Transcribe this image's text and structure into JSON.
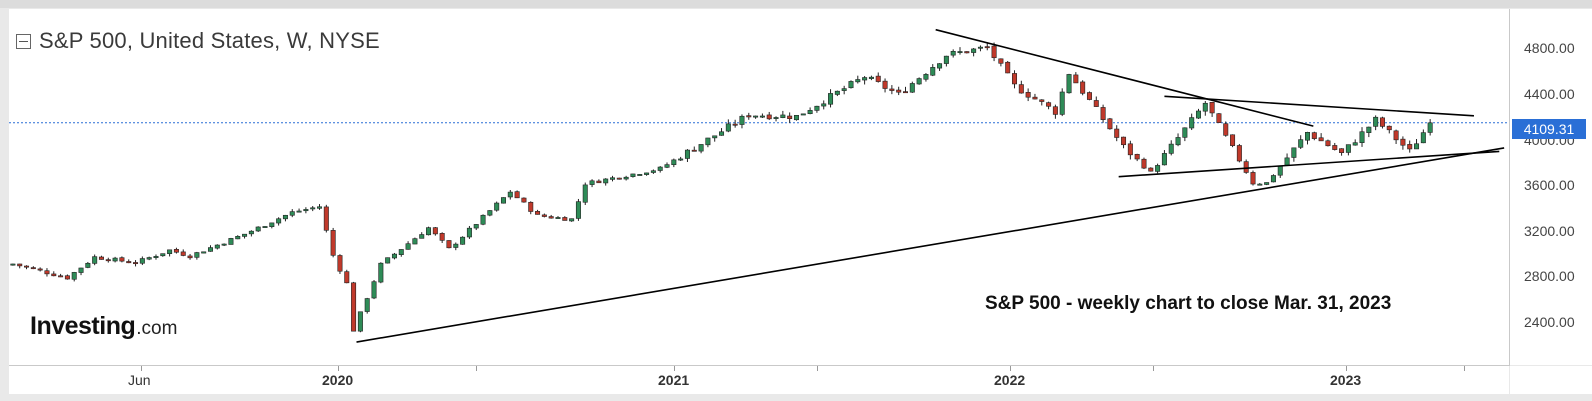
{
  "header": {
    "title": "S&P 500, United States, W, NYSE"
  },
  "annotation": "S&P 500 - weekly chart to close Mar. 31, 2023",
  "brand": {
    "name": "Investing",
    "suffix": ".com"
  },
  "price_axis": {
    "labels": [
      "4800.00",
      "4400.00",
      "4000.00",
      "3600.00",
      "3200.00",
      "2800.00",
      "2400.00"
    ],
    "current_price": "4109.31"
  },
  "time_axis": {
    "labels": [
      {
        "text": "Jun",
        "bold": false
      },
      {
        "text": "2020",
        "bold": true
      },
      {
        "text": "2021",
        "bold": true
      },
      {
        "text": "2022",
        "bold": true
      },
      {
        "text": "2023",
        "bold": true
      }
    ]
  },
  "colors": {
    "up": "#2e8b57",
    "down": "#c0392b",
    "price_line": "#2a6fd6",
    "trendline": "#000000"
  },
  "chart_data": {
    "type": "candlestick",
    "title": "S&P 500, United States, W, NYSE",
    "interval": "weekly",
    "y_range": [
      2000,
      5100
    ],
    "y_ticks": [
      2400,
      2800,
      3200,
      3600,
      4000,
      4400,
      4800
    ],
    "x_range": [
      "2019-04-01",
      "2023-06-20"
    ],
    "last_close": 4109.31,
    "anchors": [
      [
        "2019-04-05",
        2880
      ],
      [
        "2019-05-31",
        2760
      ],
      [
        "2019-06-28",
        2940
      ],
      [
        "2019-08-09",
        2890
      ],
      [
        "2019-09-13",
        3000
      ],
      [
        "2019-10-04",
        2950
      ],
      [
        "2019-11-29",
        3140
      ],
      [
        "2020-01-17",
        3330
      ],
      [
        "2020-02-14",
        3380
      ],
      [
        "2020-02-28",
        2955
      ],
      [
        "2020-03-13",
        2710
      ],
      [
        "2020-03-20",
        2305
      ],
      [
        "2020-04-17",
        2875
      ],
      [
        "2020-06-05",
        3195
      ],
      [
        "2020-06-26",
        3010
      ],
      [
        "2020-08-28",
        3510
      ],
      [
        "2020-09-25",
        3300
      ],
      [
        "2020-10-30",
        3270
      ],
      [
        "2020-11-13",
        3580
      ],
      [
        "2021-01-29",
        3710
      ],
      [
        "2021-04-30",
        4180
      ],
      [
        "2021-06-18",
        4165
      ],
      [
        "2021-08-27",
        4510
      ],
      [
        "2021-10-01",
        4355
      ],
      [
        "2021-11-19",
        4700
      ],
      [
        "2021-12-31",
        4766
      ],
      [
        "2022-01-28",
        4430
      ],
      [
        "2022-03-11",
        4205
      ],
      [
        "2022-03-25",
        4543
      ],
      [
        "2022-05-20",
        3900
      ],
      [
        "2022-06-17",
        3675
      ],
      [
        "2022-08-12",
        4280
      ],
      [
        "2022-09-30",
        3585
      ],
      [
        "2022-10-14",
        3585
      ],
      [
        "2022-11-25",
        4025
      ],
      [
        "2022-12-30",
        3840
      ],
      [
        "2023-02-03",
        4135
      ],
      [
        "2023-03-10",
        3860
      ],
      [
        "2023-03-31",
        4109
      ]
    ],
    "trendlines": [
      {
        "from": [
          "2020-03-23",
          2200
        ],
        "to": [
          "2023-06-15",
          3890
        ]
      },
      {
        "from": [
          "2021-11-08",
          4920
        ],
        "to": [
          "2022-12-01",
          4080
        ]
      },
      {
        "from": [
          "2022-07-01",
          4340
        ],
        "to": [
          "2023-05-15",
          4170
        ]
      },
      {
        "from": [
          "2022-05-15",
          3640
        ],
        "to": [
          "2023-06-10",
          3860
        ]
      }
    ]
  }
}
